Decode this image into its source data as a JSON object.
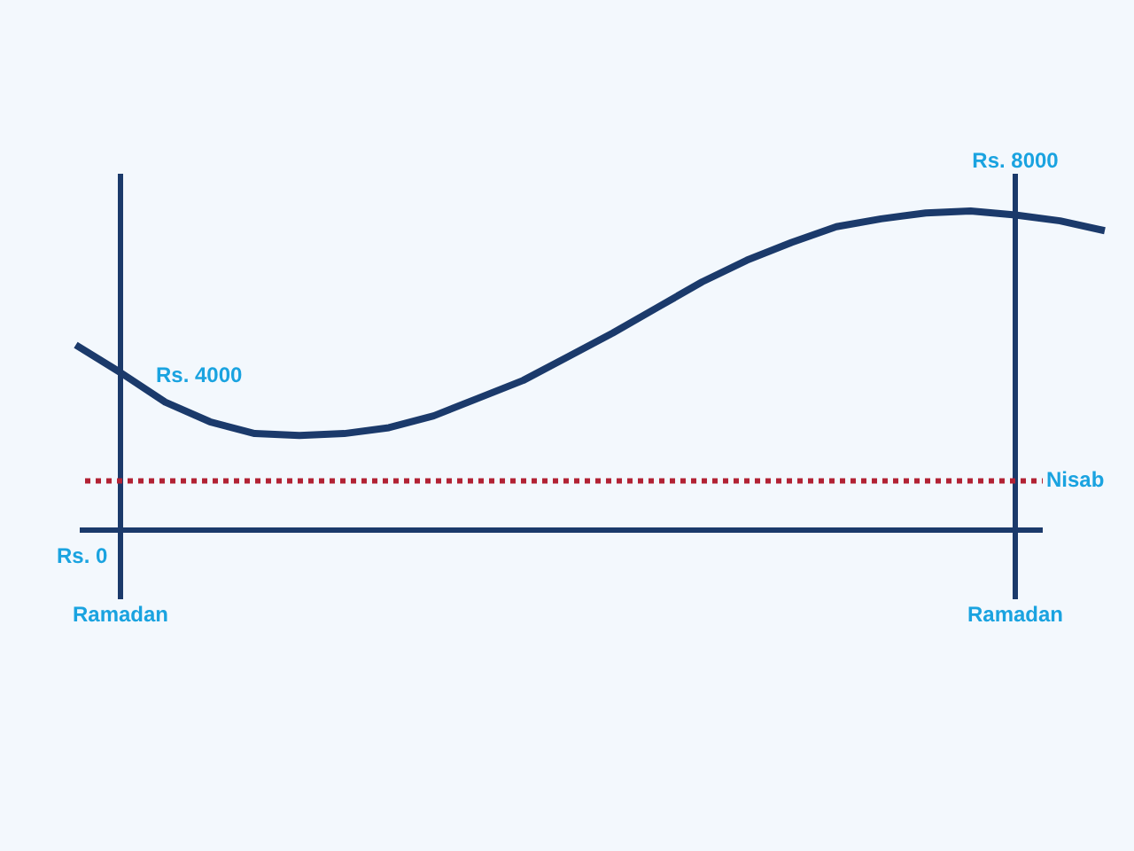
{
  "chart_data": {
    "type": "line",
    "categories": [
      null,
      "Ramadan",
      null,
      null,
      null,
      null,
      null,
      null,
      null,
      null,
      null,
      null,
      null,
      null,
      null,
      null,
      null,
      null,
      null,
      null,
      null,
      "Ramadan",
      null,
      null
    ],
    "series": [
      {
        "color": "#1b3a6b",
        "values": [
          4700,
          4000,
          3250,
          2750,
          2450,
          2400,
          2450,
          2600,
          2900,
          3350,
          3800,
          4400,
          5000,
          5650,
          6300,
          6850,
          7300,
          7700,
          7900,
          8050,
          8100,
          8000,
          7850,
          7600
        ],
        "value_labels": [
          null,
          "Rs. 4000",
          null,
          null,
          null,
          null,
          null,
          null,
          null,
          null,
          null,
          null,
          null,
          null,
          null,
          null,
          null,
          null,
          null,
          null,
          null,
          "Rs. 8000",
          null,
          null
        ]
      }
    ],
    "ref_lines": [
      {
        "axis": "y",
        "value": 1250,
        "label": "Nisab",
        "color": "#b22234",
        "line_style": "dotted"
      }
    ],
    "annotations": [
      "Rs. 0"
    ],
    "tick_labels": "x",
    "grid": "x",
    "marker": "none",
    "line_style": "solid",
    "legend": false
  }
}
